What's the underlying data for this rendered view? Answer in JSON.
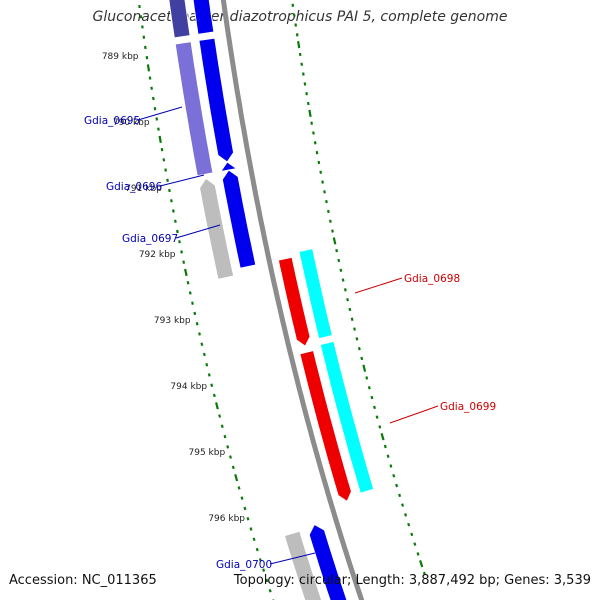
{
  "title": "Gluconacetobacter diazotrophicus PAI 5, complete genome",
  "footer": {
    "accession": "Accession: NC_011365",
    "summary": "Topology: circular; Length: 3,887,492 bp; Genes: 3,539"
  },
  "colors": {
    "backbone": "#8c8c8c",
    "tick": "#0a7a0a",
    "kbp_label": "#222222",
    "forward_gene": "#0000ee",
    "forward_gene_light": "#7b6fd8",
    "reverse_gene": "#ee0000",
    "reverse_gene_light": "#00ffff",
    "gray_gene": "#bdbdbd",
    "blue_label": "#0000b4",
    "red_label": "#cc0000"
  },
  "scale_labels": [
    {
      "text": "789 kbp",
      "kbp": 789
    },
    {
      "text": "790 kbp",
      "kbp": 790
    },
    {
      "text": "791 kbp",
      "kbp": 791
    },
    {
      "text": "792 kbp",
      "kbp": 792
    },
    {
      "text": "793 kbp",
      "kbp": 793
    },
    {
      "text": "794 kbp",
      "kbp": 794
    },
    {
      "text": "795 kbp",
      "kbp": 795
    },
    {
      "text": "796 kbp",
      "kbp": 796
    }
  ],
  "genes": [
    {
      "name": "Gdia_0695",
      "side": "left",
      "color_key": "blue_label"
    },
    {
      "name": "Gdia_0696",
      "side": "left",
      "color_key": "blue_label"
    },
    {
      "name": "Gdia_0697",
      "side": "left",
      "color_key": "blue_label"
    },
    {
      "name": "Gdia_0698",
      "side": "right",
      "color_key": "red_label"
    },
    {
      "name": "Gdia_0699",
      "side": "right",
      "color_key": "red_label"
    },
    {
      "name": "Gdia_0700",
      "side": "left",
      "color_key": "blue_label"
    }
  ]
}
